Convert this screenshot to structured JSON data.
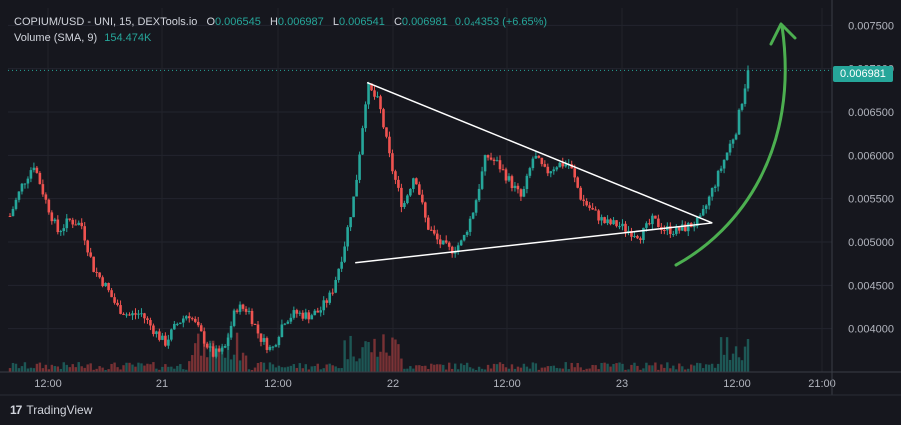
{
  "header": {
    "symbol": "COPIUM/USD - UNI, 15, DEXTools.io",
    "open_label": "O",
    "open_value": "0.006545",
    "high_label": "H",
    "high_value": "0.006987",
    "low_label": "L",
    "low_value": "0.006541",
    "close_label": "C",
    "close_value": "0.006981",
    "change_value": "0.0₄4353 (+6.65%)",
    "volume_label": "Volume (SMA, 9)",
    "volume_value": "154.474K"
  },
  "last_price_tag": "0.006981",
  "footer": {
    "brand": "TradingView",
    "logo": "17"
  },
  "colors": {
    "up": "#26a69a",
    "down": "#ef5350",
    "background": "#16171e",
    "arrow": "#4caf50",
    "trendline": "#ffffff"
  },
  "chart_data": {
    "type": "candlestick",
    "y_axis_ticks": [
      "0.007500",
      "0.007000",
      "0.006500",
      "0.006000",
      "0.005500",
      "0.005000",
      "0.004500",
      "0.004000"
    ],
    "y_axis_values": [
      0.0075,
      0.007,
      0.0065,
      0.006,
      0.0055,
      0.005,
      0.0045,
      0.004
    ],
    "x_axis_ticks": [
      "12:00",
      "21",
      "12:00",
      "22",
      "12:00",
      "23",
      "12:00",
      "21:00"
    ],
    "ylim": [
      0.0035,
      0.0077
    ],
    "last_price": 0.006981,
    "price_path": [
      {
        "t": 0,
        "p": 0.0053
      },
      {
        "t": 2,
        "p": 0.00565
      },
      {
        "t": 4,
        "p": 0.0059
      },
      {
        "t": 6,
        "p": 0.00548
      },
      {
        "t": 8,
        "p": 0.00512
      },
      {
        "t": 10,
        "p": 0.00525
      },
      {
        "t": 12,
        "p": 0.0052
      },
      {
        "t": 14,
        "p": 0.0047
      },
      {
        "t": 16,
        "p": 0.0045
      },
      {
        "t": 18,
        "p": 0.00425
      },
      {
        "t": 20,
        "p": 0.00415
      },
      {
        "t": 22,
        "p": 0.00418
      },
      {
        "t": 24,
        "p": 0.004
      },
      {
        "t": 26,
        "p": 0.00383
      },
      {
        "t": 28,
        "p": 0.00405
      },
      {
        "t": 30,
        "p": 0.00418
      },
      {
        "t": 32,
        "p": 0.00395
      },
      {
        "t": 34,
        "p": 0.0037
      },
      {
        "t": 36,
        "p": 0.00375
      },
      {
        "t": 38,
        "p": 0.00425
      },
      {
        "t": 40,
        "p": 0.00422
      },
      {
        "t": 42,
        "p": 0.0039
      },
      {
        "t": 44,
        "p": 0.00375
      },
      {
        "t": 46,
        "p": 0.0041
      },
      {
        "t": 48,
        "p": 0.00418
      },
      {
        "t": 50,
        "p": 0.00415
      },
      {
        "t": 52,
        "p": 0.0042
      },
      {
        "t": 54,
        "p": 0.0044
      },
      {
        "t": 56,
        "p": 0.0049
      },
      {
        "t": 58,
        "p": 0.0056
      },
      {
        "t": 60,
        "p": 0.0068
      },
      {
        "t": 62,
        "p": 0.0066
      },
      {
        "t": 64,
        "p": 0.0059
      },
      {
        "t": 66,
        "p": 0.0054
      },
      {
        "t": 68,
        "p": 0.0058
      },
      {
        "t": 70,
        "p": 0.0052
      },
      {
        "t": 72,
        "p": 0.005
      },
      {
        "t": 74,
        "p": 0.0049
      },
      {
        "t": 76,
        "p": 0.005
      },
      {
        "t": 78,
        "p": 0.0054
      },
      {
        "t": 80,
        "p": 0.006
      },
      {
        "t": 82,
        "p": 0.0059
      },
      {
        "t": 84,
        "p": 0.0057
      },
      {
        "t": 86,
        "p": 0.0055
      },
      {
        "t": 88,
        "p": 0.006
      },
      {
        "t": 90,
        "p": 0.0058
      },
      {
        "t": 92,
        "p": 0.0059
      },
      {
        "t": 94,
        "p": 0.0059
      },
      {
        "t": 96,
        "p": 0.0055
      },
      {
        "t": 98,
        "p": 0.00535
      },
      {
        "t": 100,
        "p": 0.00522
      },
      {
        "t": 102,
        "p": 0.0052
      },
      {
        "t": 104,
        "p": 0.00513
      },
      {
        "t": 106,
        "p": 0.00508
      },
      {
        "t": 108,
        "p": 0.00525
      },
      {
        "t": 110,
        "p": 0.00515
      },
      {
        "t": 112,
        "p": 0.00513
      },
      {
        "t": 114,
        "p": 0.00518
      },
      {
        "t": 116,
        "p": 0.00525
      },
      {
        "t": 118,
        "p": 0.0056
      },
      {
        "t": 120,
        "p": 0.00595
      },
      {
        "t": 122,
        "p": 0.0063
      },
      {
        "t": 124,
        "p": 0.00698
      }
    ],
    "triangle_upper": [
      {
        "t": 60,
        "p": 0.00684
      },
      {
        "t": 118,
        "p": 0.00522
      }
    ],
    "triangle_lower": [
      {
        "t": 58,
        "p": 0.00476
      },
      {
        "t": 118,
        "p": 0.00522
      }
    ]
  }
}
